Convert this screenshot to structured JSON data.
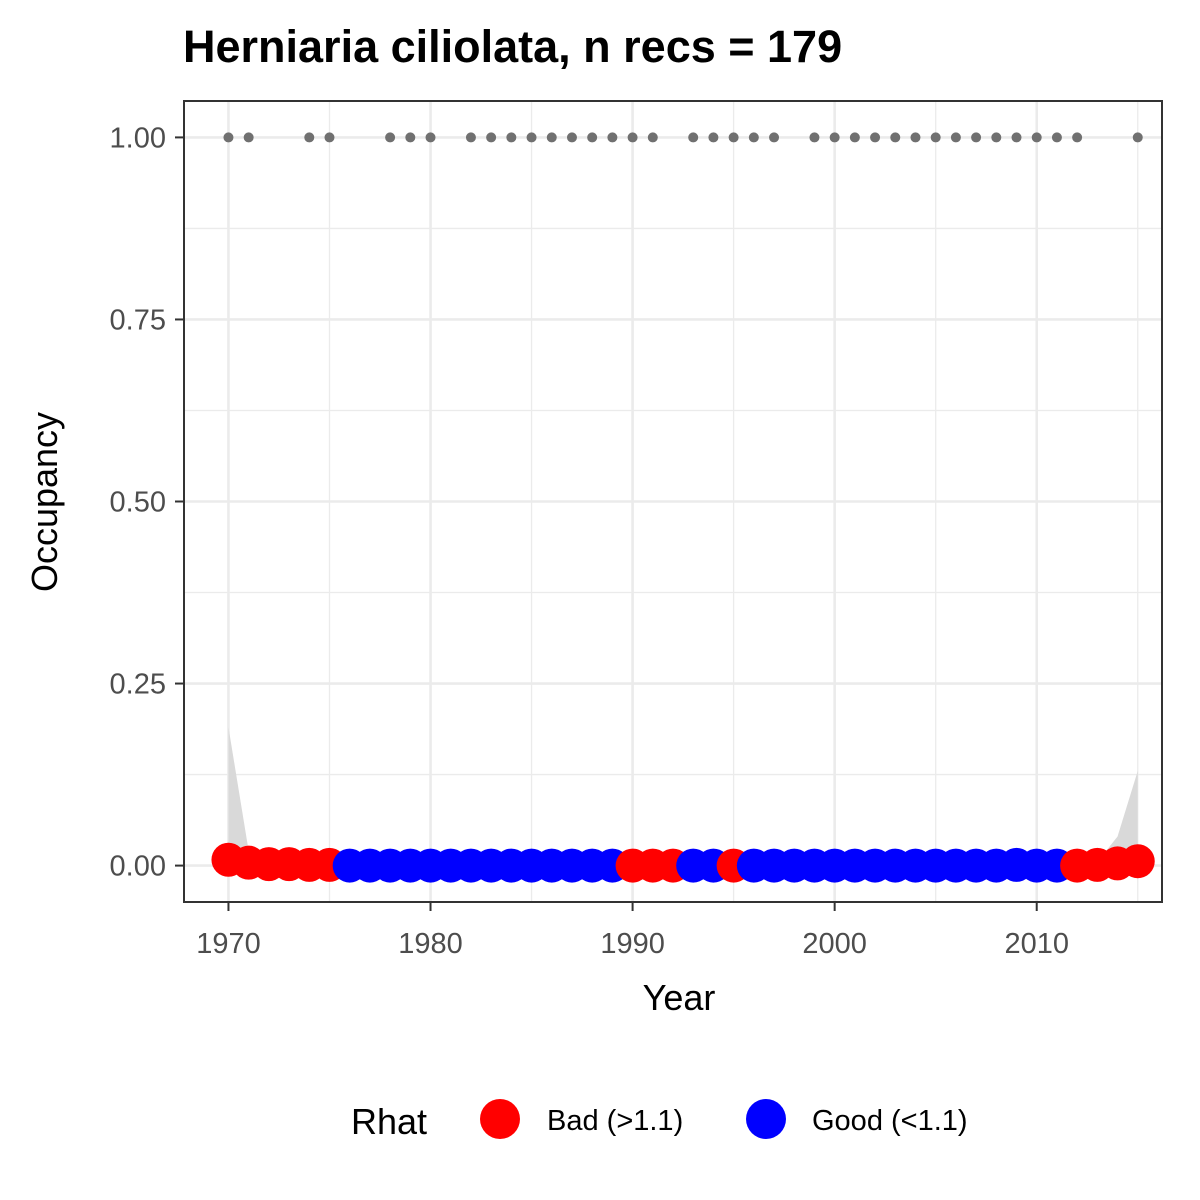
{
  "chart_data": {
    "type": "scatter",
    "title": "Herniaria ciliolata, n recs = 179",
    "xlabel": "Year",
    "ylabel": "Occupancy",
    "xlim": [
      1967.8,
      2016.2
    ],
    "ylim": [
      -0.05,
      1.05
    ],
    "x_ticks": [
      1970,
      1980,
      1990,
      2000,
      2010
    ],
    "x_tick_labels": [
      "1970",
      "1980",
      "1990",
      "2000",
      "2010"
    ],
    "y_ticks": [
      0.0,
      0.25,
      0.5,
      0.75,
      1.0
    ],
    "y_tick_labels": [
      "0.00",
      "0.25",
      "0.50",
      "0.75",
      "1.00"
    ],
    "grid": true,
    "legend": {
      "title": "Rhat",
      "position": "bottom",
      "entries": [
        {
          "label": "Bad (>1.1)",
          "color": "#ff0000"
        },
        {
          "label": "Good (<1.1)",
          "color": "#0000ff"
        }
      ]
    },
    "occupancy_series": {
      "years": [
        1970,
        1971,
        1972,
        1973,
        1974,
        1975,
        1976,
        1977,
        1978,
        1979,
        1980,
        1981,
        1982,
        1983,
        1984,
        1985,
        1986,
        1987,
        1988,
        1989,
        1990,
        1991,
        1992,
        1993,
        1994,
        1995,
        1996,
        1997,
        1998,
        1999,
        2000,
        2001,
        2002,
        2003,
        2004,
        2005,
        2006,
        2007,
        2008,
        2009,
        2010,
        2011,
        2012,
        2013,
        2014,
        2015
      ],
      "occupancy": [
        0.008,
        0.004,
        0.002,
        0.002,
        0.001,
        0.001,
        0,
        0,
        0,
        0,
        0,
        0,
        0,
        0,
        0,
        0,
        0,
        0,
        0,
        0,
        0,
        0,
        0,
        0,
        0,
        0,
        0,
        0,
        0,
        0,
        0,
        0,
        0,
        0,
        0,
        0,
        0,
        0,
        0,
        0.001,
        0,
        0,
        0,
        0.001,
        0.003,
        0.006
      ],
      "upper_ci": [
        0.19,
        0.02,
        0.006,
        0.004,
        0.002,
        0.002,
        0,
        0,
        0,
        0,
        0,
        0,
        0,
        0,
        0,
        0,
        0,
        0,
        0,
        0,
        0,
        0,
        0,
        0,
        0,
        0,
        0,
        0,
        0,
        0,
        0,
        0,
        0,
        0,
        0,
        0,
        0,
        0,
        0,
        0.002,
        0,
        0,
        0.001,
        0.005,
        0.04,
        0.13
      ],
      "rhat": [
        "Bad",
        "Bad",
        "Bad",
        "Bad",
        "Bad",
        "Bad",
        "Good",
        "Good",
        "Good",
        "Good",
        "Good",
        "Good",
        "Good",
        "Good",
        "Good",
        "Good",
        "Good",
        "Good",
        "Good",
        "Good",
        "Bad",
        "Bad",
        "Bad",
        "Good",
        "Good",
        "Bad",
        "Good",
        "Good",
        "Good",
        "Good",
        "Good",
        "Good",
        "Good",
        "Good",
        "Good",
        "Good",
        "Good",
        "Good",
        "Good",
        "Good",
        "Good",
        "Good",
        "Bad",
        "Bad",
        "Bad",
        "Bad"
      ]
    },
    "record_years": [
      1970,
      1971,
      1974,
      1975,
      1978,
      1979,
      1980,
      1982,
      1983,
      1984,
      1985,
      1986,
      1987,
      1988,
      1989,
      1990,
      1991,
      1993,
      1994,
      1995,
      1996,
      1997,
      1999,
      2000,
      2001,
      2002,
      2003,
      2004,
      2005,
      2006,
      2007,
      2008,
      2009,
      2010,
      2011,
      2012,
      2015
    ],
    "record_value": 1.0,
    "colors": {
      "bad": "#ff0000",
      "good": "#0000ff",
      "records": "#707070",
      "ribbon": "#d9d9d9",
      "grid": "#ebebeb",
      "panel_border": "#333333"
    }
  }
}
